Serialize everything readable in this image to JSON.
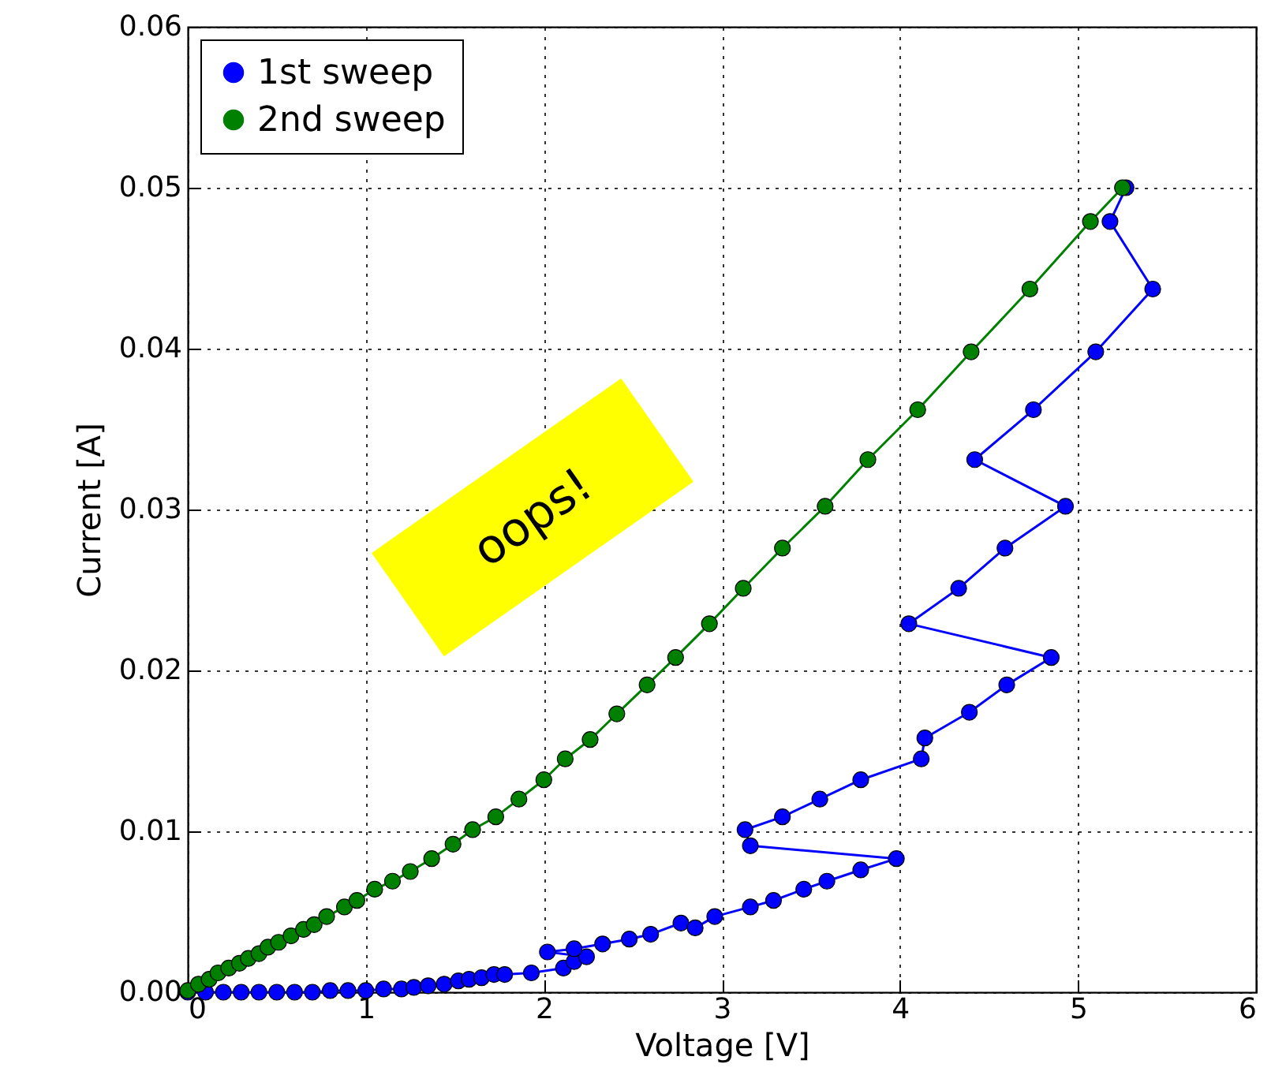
{
  "chart_data": {
    "type": "line",
    "xlabel": "Voltage [V]",
    "ylabel": "Current [A]",
    "xlim": [
      0,
      6
    ],
    "ylim": [
      0,
      0.06
    ],
    "xticks": [
      0,
      1,
      2,
      3,
      4,
      5,
      6
    ],
    "yticks": [
      {
        "value": 0,
        "label": "0.00"
      },
      {
        "value": 0.01,
        "label": "0.01"
      },
      {
        "value": 0.02,
        "label": "0.02"
      },
      {
        "value": 0.03,
        "label": "0.03"
      },
      {
        "value": 0.04,
        "label": "0.04"
      },
      {
        "value": 0.05,
        "label": "0.05"
      },
      {
        "value": 0.06,
        "label": "0.06"
      }
    ],
    "grid": true,
    "legend": "top left",
    "marker": "circle",
    "line_style": "solid",
    "annotations": [
      "oops!"
    ],
    "series": [
      {
        "name": "1st sweep",
        "color": "#0000ff",
        "x": [
          0.0,
          0.1,
          0.2,
          0.3,
          0.4,
          0.5,
          0.6,
          0.7,
          0.8,
          0.9,
          1.0,
          1.1,
          1.2,
          1.27,
          1.35,
          1.44,
          1.52,
          1.58,
          1.65,
          1.72,
          1.78,
          1.93,
          2.11,
          2.17,
          2.24,
          2.02,
          2.17,
          2.33,
          2.48,
          2.6,
          2.77,
          2.85,
          2.96,
          3.16,
          3.29,
          3.46,
          3.59,
          3.78,
          3.98,
          3.16,
          3.13,
          3.34,
          3.55,
          3.78,
          4.12,
          4.14,
          4.39,
          4.6,
          4.85,
          4.05,
          4.33,
          4.59,
          4.93,
          4.42,
          4.75,
          5.1,
          5.42,
          5.18,
          5.27
        ],
        "values": [
          0.0,
          0.0,
          0.0,
          0.0,
          0.0,
          0.0,
          0.0,
          0.0,
          0.0001,
          0.0001,
          0.0001,
          0.0002,
          0.0002,
          0.0003,
          0.0004,
          0.0005,
          0.0007,
          0.0008,
          0.0009,
          0.0011,
          0.0011,
          0.0012,
          0.0015,
          0.0019,
          0.0022,
          0.0025,
          0.0027,
          0.003,
          0.0033,
          0.0036,
          0.0043,
          0.004,
          0.0047,
          0.0053,
          0.0057,
          0.0064,
          0.0069,
          0.0076,
          0.0083,
          0.0091,
          0.0101,
          0.0109,
          0.012,
          0.0132,
          0.0145,
          0.0158,
          0.0174,
          0.0191,
          0.0208,
          0.0229,
          0.0251,
          0.0276,
          0.0302,
          0.0331,
          0.0362,
          0.0398,
          0.0437,
          0.0479,
          0.05
        ]
      },
      {
        "name": "2nd sweep",
        "color": "#008000",
        "x": [
          0.0,
          0.06,
          0.12,
          0.17,
          0.23,
          0.29,
          0.34,
          0.4,
          0.45,
          0.51,
          0.58,
          0.65,
          0.71,
          0.78,
          0.88,
          0.95,
          1.05,
          1.15,
          1.25,
          1.37,
          1.49,
          1.6,
          1.73,
          1.86,
          2.0,
          2.12,
          2.26,
          2.41,
          2.58,
          2.74,
          2.93,
          3.12,
          3.34,
          3.58,
          3.82,
          4.1,
          4.4,
          4.73,
          5.07,
          5.25
        ],
        "values": [
          0.0001,
          0.0005,
          0.0008,
          0.0012,
          0.0015,
          0.0018,
          0.0021,
          0.0024,
          0.0028,
          0.0031,
          0.0035,
          0.0039,
          0.0042,
          0.0047,
          0.0053,
          0.0057,
          0.0064,
          0.0069,
          0.0075,
          0.0083,
          0.0092,
          0.0101,
          0.0109,
          0.012,
          0.0132,
          0.0145,
          0.0157,
          0.0173,
          0.0191,
          0.0208,
          0.0229,
          0.0251,
          0.0276,
          0.0302,
          0.0331,
          0.0362,
          0.0398,
          0.0437,
          0.0479,
          0.05
        ]
      }
    ]
  }
}
